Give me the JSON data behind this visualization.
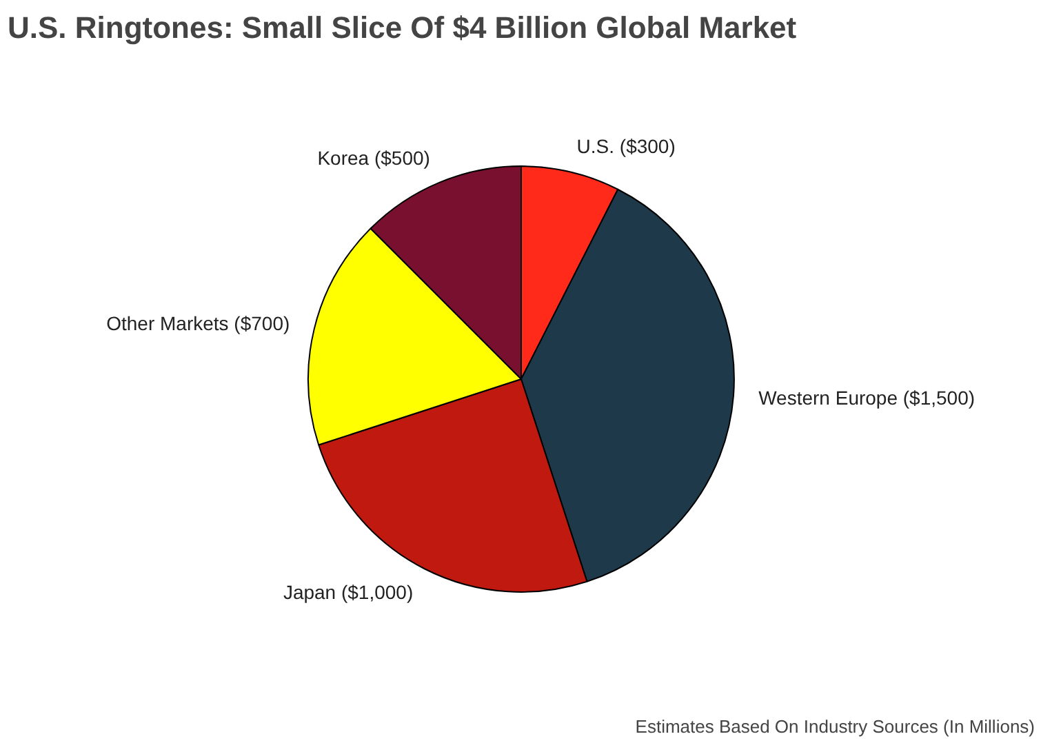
{
  "chart_data": {
    "type": "pie",
    "title": "U.S. Ringtones: Small Slice Of $4 Billion Global Market",
    "categories": [
      "U.S. ($300)",
      "Western Europe ($1,500)",
      "Japan ($1,000)",
      "Other Markets ($700)",
      "Korea ($500)"
    ],
    "values": [
      300,
      1500,
      1000,
      700,
      500
    ],
    "colors": [
      "#ff2a1a",
      "#1e3a4a",
      "#c01a10",
      "#ffff00",
      "#7a1030"
    ],
    "annotations": [
      "Estimates Based On Industry Sources (In Millions)"
    ]
  }
}
